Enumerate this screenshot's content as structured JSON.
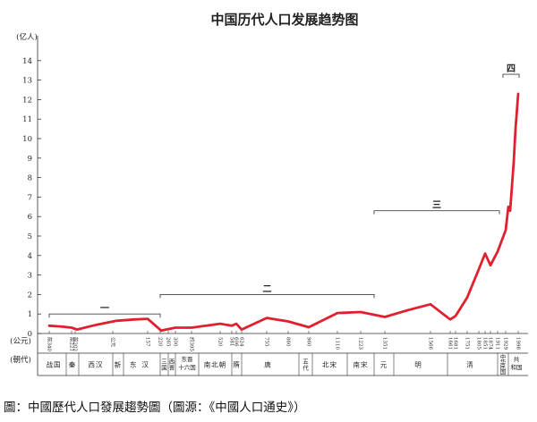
{
  "chart_data": {
    "type": "line",
    "title": "中国历代人口发展趋势图",
    "y_unit_label": "(亿人)",
    "x_unit_label": "(公元)",
    "dynasty_row_label": "(朝代)",
    "ylim": [
      0,
      15
    ],
    "y_ticks": [
      0,
      1,
      2,
      3,
      4,
      5,
      6,
      7,
      8,
      9,
      10,
      11,
      12,
      13,
      14
    ],
    "grid": false,
    "line_color": "#e0202e",
    "year_ticks": [
      {
        "label": "前340",
        "px": 55
      },
      {
        "label": "前221",
        "px": 80
      },
      {
        "label": "前202",
        "px": 84
      },
      {
        "label": "公元",
        "px": 126
      },
      {
        "label": "157",
        "px": 165
      },
      {
        "label": "220",
        "px": 179
      },
      {
        "label": "265",
        "px": 188
      },
      {
        "label": "300",
        "px": 196
      },
      {
        "label": "约395",
        "px": 214
      },
      {
        "label": "520",
        "px": 246
      },
      {
        "label": "581",
        "px": 259
      },
      {
        "label": "606",
        "px": 264
      },
      {
        "label": "624",
        "px": 270
      },
      {
        "label": "755",
        "px": 298
      },
      {
        "label": "860",
        "px": 322
      },
      {
        "label": "960",
        "px": 345
      },
      {
        "label": "1110",
        "px": 377
      },
      {
        "label": "1223",
        "px": 403
      },
      {
        "label": "1351",
        "px": 430
      },
      {
        "label": "1566",
        "px": 481
      },
      {
        "label": "1661",
        "px": 503
      },
      {
        "label": "1681",
        "px": 509
      },
      {
        "label": "1751",
        "px": 522
      },
      {
        "label": "1805",
        "px": 535
      },
      {
        "label": "1851",
        "px": 542
      },
      {
        "label": "1874",
        "px": 548
      },
      {
        "label": "1911",
        "px": 556
      },
      {
        "label": "1929",
        "px": 565
      },
      {
        "label": "1998",
        "px": 579
      }
    ],
    "series": [
      {
        "values": [
          {
            "px": 55,
            "y": 0.4
          },
          {
            "px": 70,
            "y": 0.35
          },
          {
            "px": 80,
            "y": 0.3
          },
          {
            "px": 86,
            "y": 0.2
          },
          {
            "px": 108,
            "y": 0.45
          },
          {
            "px": 130,
            "y": 0.65
          },
          {
            "px": 150,
            "y": 0.72
          },
          {
            "px": 165,
            "y": 0.75
          },
          {
            "px": 180,
            "y": 0.15
          },
          {
            "px": 196,
            "y": 0.3
          },
          {
            "px": 214,
            "y": 0.3
          },
          {
            "px": 246,
            "y": 0.5
          },
          {
            "px": 259,
            "y": 0.4
          },
          {
            "px": 264,
            "y": 0.5
          },
          {
            "px": 270,
            "y": 0.2
          },
          {
            "px": 298,
            "y": 0.8
          },
          {
            "px": 322,
            "y": 0.62
          },
          {
            "px": 345,
            "y": 0.32
          },
          {
            "px": 377,
            "y": 1.05
          },
          {
            "px": 403,
            "y": 1.1
          },
          {
            "px": 430,
            "y": 0.85
          },
          {
            "px": 456,
            "y": 1.2
          },
          {
            "px": 481,
            "y": 1.5
          },
          {
            "px": 503,
            "y": 0.72
          },
          {
            "px": 509,
            "y": 0.9
          },
          {
            "px": 522,
            "y": 1.85
          },
          {
            "px": 535,
            "y": 3.3
          },
          {
            "px": 542,
            "y": 4.1
          },
          {
            "px": 548,
            "y": 3.5
          },
          {
            "px": 556,
            "y": 4.2
          },
          {
            "px": 565,
            "y": 5.3
          },
          {
            "px": 568,
            "y": 6.5
          },
          {
            "px": 570,
            "y": 6.3
          },
          {
            "px": 574,
            "y": 8.8
          },
          {
            "px": 576,
            "y": 10.5
          },
          {
            "px": 579,
            "y": 12.3
          }
        ]
      }
    ],
    "dynasties": [
      {
        "label": "战国",
        "from": 46,
        "to": 74
      },
      {
        "label": "秦",
        "from": 74,
        "to": 88
      },
      {
        "label": "西汉",
        "from": 88,
        "to": 126
      },
      {
        "label": "新",
        "from": 126,
        "to": 138
      },
      {
        "label": "东汉",
        "from": 138,
        "to": 179
      },
      {
        "label": "三国",
        "from": 179,
        "to": 188,
        "vertical": true
      },
      {
        "label": "西晋",
        "from": 188,
        "to": 196,
        "vertical": true
      },
      {
        "label": "东晋十六国",
        "from": 196,
        "to": 222,
        "stacked": [
          "东晋",
          "十六国"
        ]
      },
      {
        "label": "南北朝",
        "from": 222,
        "to": 259
      },
      {
        "label": "隋",
        "from": 259,
        "to": 270
      },
      {
        "label": "唐",
        "from": 270,
        "to": 334
      },
      {
        "label": "五代",
        "from": 334,
        "to": 349,
        "vertical": true
      },
      {
        "label": "北宋",
        "from": 349,
        "to": 388
      },
      {
        "label": "南宋",
        "from": 388,
        "to": 418
      },
      {
        "label": "元",
        "from": 418,
        "to": 440
      },
      {
        "label": "明",
        "from": 440,
        "to": 500
      },
      {
        "label": "清",
        "from": 500,
        "to": 556
      },
      {
        "label": "中华民国",
        "from": 556,
        "to": 568,
        "vertical": true
      },
      {
        "label": "共和国",
        "from": 568,
        "to": 586,
        "stacked": [
          "共",
          "和国"
        ]
      }
    ],
    "annotations": [
      {
        "label": "一",
        "from": 55,
        "to": 179,
        "y": 1.0
      },
      {
        "label": "二",
        "from": 179,
        "to": 418,
        "y": 2.0
      },
      {
        "label": "三",
        "from": 418,
        "to": 558,
        "y": 6.3
      },
      {
        "label": "四",
        "from": 562,
        "to": 580,
        "y": 13.3
      }
    ]
  },
  "caption": "圖：中國歷代人口發展趨勢圖（圖源：《中國人口通史》）"
}
